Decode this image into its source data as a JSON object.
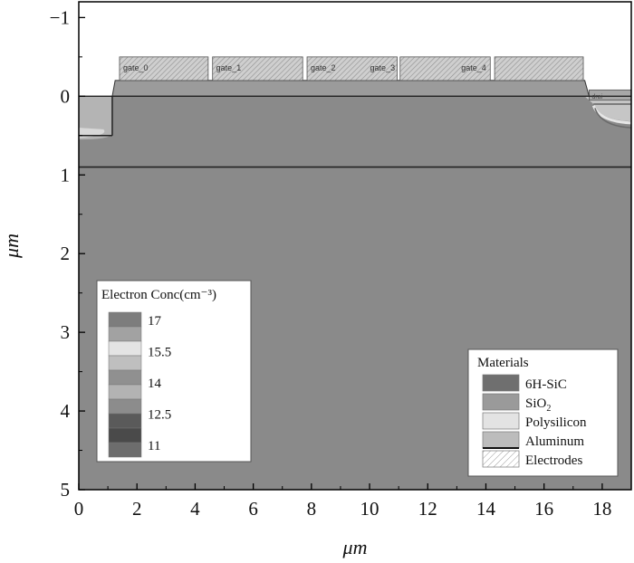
{
  "axes": {
    "xlabel": "μm",
    "ylabel": "μm",
    "xlim": [
      0,
      19
    ],
    "ylim": [
      5,
      -1.2
    ],
    "xticks": [
      0,
      2,
      4,
      6,
      8,
      10,
      12,
      14,
      16,
      18
    ],
    "yticks": [
      -1,
      0,
      1,
      2,
      3,
      4,
      5
    ],
    "ytick_labels": [
      "−1",
      "0",
      "1",
      "2",
      "3",
      "4",
      "5"
    ]
  },
  "structure": {
    "substrate_color": "#8a8a8a",
    "oxide_color": "#9b9b9b",
    "electrode_color": "#858585",
    "epi_boundary_depth": 0.9,
    "surface": [
      0,
      0
    ],
    "oxide": {
      "x0": 1.25,
      "x1": 17.4,
      "top": -0.2,
      "bottom": 0
    },
    "source_region": {
      "x0": 0,
      "x1": 1.15,
      "top": 0,
      "bottom": 0.5
    },
    "drain_region": {
      "x0": 17.4,
      "x1": 19,
      "top": 0.05,
      "bottom": 0.4
    },
    "gates": [
      {
        "label": "gate_0",
        "x0": 1.4,
        "x1": 4.45
      },
      {
        "label": "gate_1",
        "x0": 4.6,
        "x1": 7.7
      },
      {
        "label": "gate_2",
        "x0": 7.85,
        "x1": 10.95,
        "extra_label": "gate_3"
      },
      {
        "label": "gate_4",
        "x0": 11.05,
        "x1": 14.15
      },
      {
        "label": "",
        "x0": 14.3,
        "x1": 17.35
      }
    ],
    "gate_top": -0.5,
    "gate_bottom": -0.2,
    "drain_label": "drai"
  },
  "legend_conc": {
    "title": "Electron Conc(cm⁻³)",
    "placement": "bottom-left",
    "swatches": [
      "#7d7d7d",
      "#a2a2a2",
      "#e4e4e4",
      "#bfbfbf",
      "#909090",
      "#b3b3b3",
      "#8c8c8c",
      "#5a5a5a",
      "#4a4a4a",
      "#6d6d6d"
    ],
    "labels": [
      "17",
      "15.5",
      "14",
      "12.5",
      "11"
    ]
  },
  "legend_materials": {
    "title": "Materials",
    "placement": "bottom-right",
    "items": [
      {
        "label": "6H-SiC",
        "color": "#6f6f6f",
        "hatched": false,
        "sub": ""
      },
      {
        "label": "SiO",
        "sub": "2",
        "color": "#9a9a9a",
        "hatched": false
      },
      {
        "label": "Polysilicon",
        "color": "#e3e3e3",
        "hatched": false,
        "sub": ""
      },
      {
        "label": "Aluminum",
        "color": "#bcbcbc",
        "hatched": false,
        "sub": ""
      },
      {
        "label": "Electrodes",
        "color": "#ffffff",
        "hatched": true,
        "sub": ""
      }
    ]
  }
}
